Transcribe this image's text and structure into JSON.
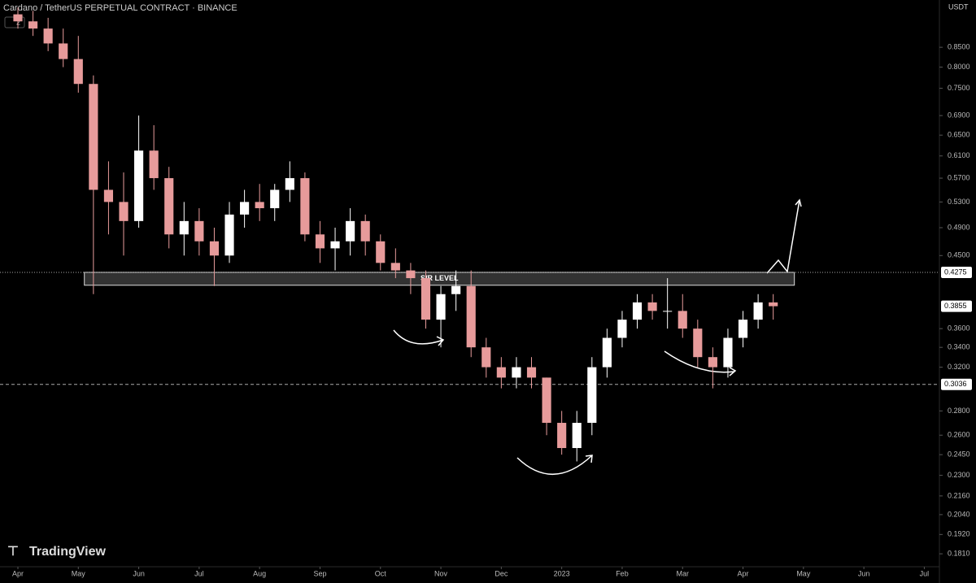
{
  "chart_data": {
    "type": "candlestick",
    "title": "Cardano / TetherUS PERPETUAL CONTRACT · BINANCE",
    "interval_badge": "2",
    "currency": "USDT",
    "brand": "TradingView",
    "log_scale": true,
    "grid": false,
    "up_color": "#ffffff",
    "down_color": "#e79b9b",
    "xlim": [
      -0.296,
      15.25
    ],
    "xticks": [
      {
        "value": 0,
        "label": "Apr"
      },
      {
        "value": 1,
        "label": "May"
      },
      {
        "value": 2,
        "label": "Jun"
      },
      {
        "value": 3,
        "label": "Jul"
      },
      {
        "value": 4,
        "label": "Aug"
      },
      {
        "value": 5,
        "label": "Sep"
      },
      {
        "value": 6,
        "label": "Oct"
      },
      {
        "value": 7,
        "label": "Nov"
      },
      {
        "value": 8,
        "label": "Dec"
      },
      {
        "value": 9,
        "label": "2023"
      },
      {
        "value": 10,
        "label": "Feb"
      },
      {
        "value": 11,
        "label": "Mar"
      },
      {
        "value": 12,
        "label": "Apr"
      },
      {
        "value": 13,
        "label": "May"
      },
      {
        "value": 14,
        "label": "Jun"
      },
      {
        "value": 15,
        "label": "Jul"
      }
    ],
    "ylim": [
      0.1727,
      0.982
    ],
    "yticks": [
      {
        "value": 0.85,
        "label": "0.8500"
      },
      {
        "value": 0.8,
        "label": "0.8000"
      },
      {
        "value": 0.75,
        "label": "0.7500"
      },
      {
        "value": 0.69,
        "label": "0.6900"
      },
      {
        "value": 0.65,
        "label": "0.6500"
      },
      {
        "value": 0.61,
        "label": "0.6100"
      },
      {
        "value": 0.57,
        "label": "0.5700"
      },
      {
        "value": 0.53,
        "label": "0.5300"
      },
      {
        "value": 0.49,
        "label": "0.4900"
      },
      {
        "value": 0.45,
        "label": "0.4500"
      },
      {
        "value": 0.36,
        "label": "0.3600"
      },
      {
        "value": 0.34,
        "label": "0.3400"
      },
      {
        "value": 0.32,
        "label": "0.3200"
      },
      {
        "value": 0.28,
        "label": "0.2800"
      },
      {
        "value": 0.26,
        "label": "0.2600"
      },
      {
        "value": 0.245,
        "label": "0.2450"
      },
      {
        "value": 0.23,
        "label": "0.2300"
      },
      {
        "value": 0.216,
        "label": "0.2160"
      },
      {
        "value": 0.204,
        "label": "0.2040"
      },
      {
        "value": 0.192,
        "label": "0.1920"
      },
      {
        "value": 0.181,
        "label": "0.1810"
      }
    ],
    "price_lines": [
      {
        "value": 0.4275,
        "style": "dotted"
      },
      {
        "value": 0.3036,
        "style": "dashed"
      }
    ],
    "last_price": 0.3855,
    "sr_zone": {
      "label": "S/R LEVEL",
      "low": 0.411,
      "high": 0.4275,
      "x": [
        1.1,
        12.85
      ]
    },
    "x": [
      0,
      0.25,
      0.5,
      0.75,
      1,
      1.25,
      1.5,
      1.75,
      2,
      2.25,
      2.5,
      2.75,
      3,
      3.25,
      3.5,
      3.75,
      4,
      4.25,
      4.5,
      4.75,
      5,
      5.25,
      5.5,
      5.75,
      6,
      6.25,
      6.5,
      6.75,
      7,
      7.25,
      7.5,
      7.75,
      8,
      8.25,
      8.5,
      8.75,
      9,
      9.25,
      9.5,
      9.75,
      10,
      10.25,
      10.5,
      10.75,
      11,
      11.25,
      11.5,
      11.75,
      12,
      12.25,
      12.5
    ],
    "open": [
      0.94,
      0.92,
      0.9,
      0.86,
      0.82,
      0.76,
      0.55,
      0.53,
      0.5,
      0.62,
      0.57,
      0.48,
      0.5,
      0.47,
      0.45,
      0.51,
      0.53,
      0.52,
      0.55,
      0.57,
      0.48,
      0.46,
      0.47,
      0.5,
      0.47,
      0.44,
      0.43,
      0.42,
      0.37,
      0.4,
      0.41,
      0.34,
      0.32,
      0.31,
      0.32,
      0.31,
      0.27,
      0.25,
      0.27,
      0.32,
      0.35,
      0.37,
      0.39,
      0.38,
      0.38,
      0.36,
      0.33,
      0.32,
      0.35,
      0.37,
      0.39
    ],
    "high": [
      0.96,
      0.95,
      0.93,
      0.9,
      0.88,
      0.78,
      0.6,
      0.58,
      0.69,
      0.67,
      0.59,
      0.53,
      0.52,
      0.49,
      0.53,
      0.55,
      0.56,
      0.56,
      0.6,
      0.58,
      0.5,
      0.49,
      0.52,
      0.51,
      0.48,
      0.46,
      0.44,
      0.43,
      0.41,
      0.43,
      0.43,
      0.35,
      0.33,
      0.33,
      0.33,
      0.31,
      0.28,
      0.28,
      0.33,
      0.36,
      0.38,
      0.4,
      0.4,
      0.42,
      0.4,
      0.37,
      0.34,
      0.36,
      0.38,
      0.4,
      0.4
    ],
    "low": [
      0.9,
      0.88,
      0.84,
      0.8,
      0.74,
      0.4,
      0.48,
      0.45,
      0.49,
      0.55,
      0.46,
      0.45,
      0.45,
      0.41,
      0.44,
      0.49,
      0.5,
      0.5,
      0.53,
      0.47,
      0.44,
      0.43,
      0.45,
      0.45,
      0.43,
      0.42,
      0.4,
      0.36,
      0.34,
      0.38,
      0.33,
      0.31,
      0.3,
      0.3,
      0.3,
      0.26,
      0.245,
      0.24,
      0.26,
      0.31,
      0.34,
      0.36,
      0.37,
      0.36,
      0.35,
      0.32,
      0.3,
      0.31,
      0.34,
      0.36,
      0.37
    ],
    "close": [
      0.92,
      0.9,
      0.86,
      0.82,
      0.76,
      0.55,
      0.53,
      0.5,
      0.62,
      0.57,
      0.48,
      0.5,
      0.47,
      0.45,
      0.51,
      0.53,
      0.52,
      0.55,
      0.57,
      0.48,
      0.46,
      0.47,
      0.5,
      0.47,
      0.44,
      0.43,
      0.42,
      0.37,
      0.4,
      0.41,
      0.34,
      0.32,
      0.31,
      0.32,
      0.31,
      0.27,
      0.25,
      0.27,
      0.32,
      0.35,
      0.37,
      0.39,
      0.38,
      0.38,
      0.36,
      0.33,
      0.32,
      0.35,
      0.37,
      0.39,
      0.3855
    ]
  }
}
